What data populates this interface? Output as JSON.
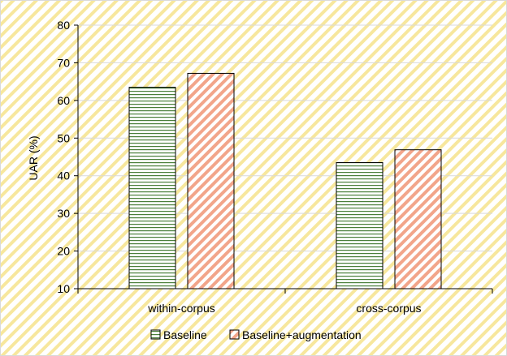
{
  "chart_data": {
    "type": "bar",
    "categories": [
      "within-corpus",
      "cross-corpus"
    ],
    "series": [
      {
        "name": "Baseline",
        "values": [
          63.5,
          43.5
        ],
        "fill": "horizontal-stripes",
        "color": "#4a7f3a"
      },
      {
        "name": "Baseline+augmentation",
        "values": [
          67.2,
          46.9
        ],
        "fill": "diagonal-stripes",
        "color": "#f2a58a"
      }
    ],
    "ylabel": "UAR (%)",
    "xlabel": "",
    "ylim": [
      10,
      80
    ],
    "yticks": [
      10,
      20,
      30,
      40,
      50,
      60,
      70,
      80
    ],
    "grid": true,
    "legend_position": "bottom",
    "background_pattern": "diagonal-stripes",
    "background_color": "#f7e79d"
  }
}
